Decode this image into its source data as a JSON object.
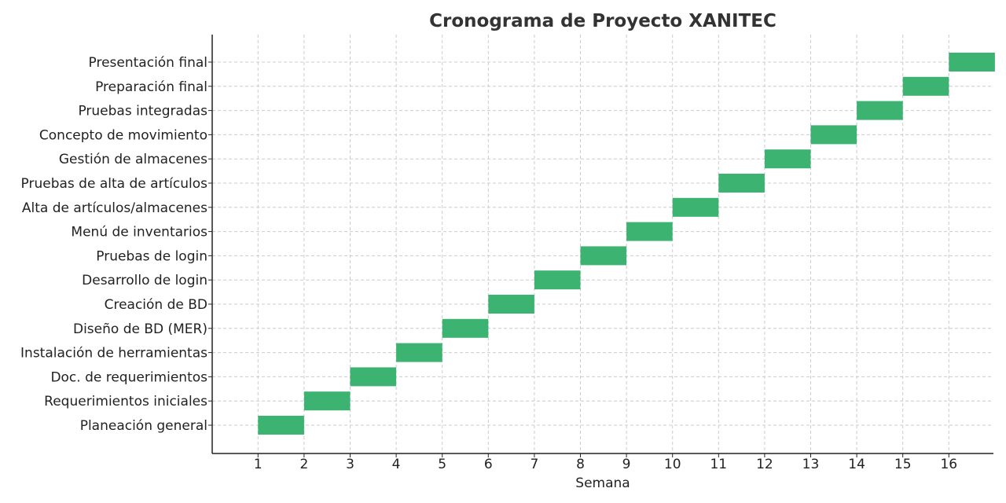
{
  "chart_data": {
    "type": "bar",
    "orientation": "horizontal-gantt",
    "title": "Cronograma de Proyecto XANITEC",
    "xlabel": "Semana",
    "ylabel": "",
    "xlim": [
      0,
      17
    ],
    "xticks": [
      1,
      2,
      3,
      4,
      5,
      6,
      7,
      8,
      9,
      10,
      11,
      12,
      13,
      14,
      15,
      16
    ],
    "grid": true,
    "bar_color": "#3cb371",
    "tasks": [
      {
        "name": "Planeación general",
        "start": 1,
        "end": 2
      },
      {
        "name": "Requerimientos iniciales",
        "start": 2,
        "end": 3
      },
      {
        "name": "Doc. de requerimientos",
        "start": 3,
        "end": 4
      },
      {
        "name": "Instalación de herramientas",
        "start": 4,
        "end": 5
      },
      {
        "name": "Diseño de BD (MER)",
        "start": 5,
        "end": 6
      },
      {
        "name": "Creación de BD",
        "start": 6,
        "end": 7
      },
      {
        "name": "Desarrollo de login",
        "start": 7,
        "end": 8
      },
      {
        "name": "Pruebas de login",
        "start": 8,
        "end": 9
      },
      {
        "name": "Menú de inventarios",
        "start": 9,
        "end": 10
      },
      {
        "name": "Alta de artículos/almacenes",
        "start": 10,
        "end": 11
      },
      {
        "name": "Pruebas de alta de artículos",
        "start": 11,
        "end": 12
      },
      {
        "name": "Gestión de almacenes",
        "start": 12,
        "end": 13
      },
      {
        "name": "Concepto de movimiento",
        "start": 13,
        "end": 14
      },
      {
        "name": "Pruebas integradas",
        "start": 14,
        "end": 15
      },
      {
        "name": "Preparación final",
        "start": 15,
        "end": 16
      },
      {
        "name": "Presentación final",
        "start": 16,
        "end": 17
      }
    ]
  }
}
